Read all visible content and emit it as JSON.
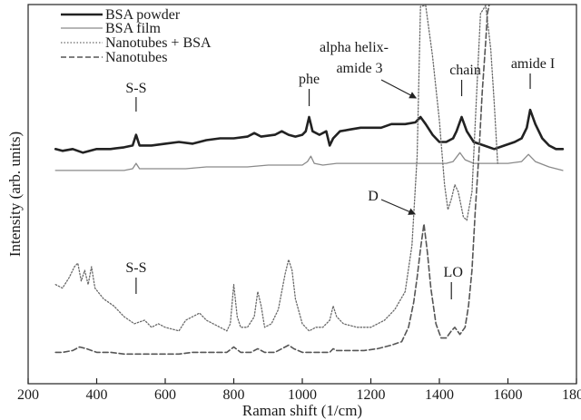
{
  "chart_data": {
    "type": "line",
    "xlabel": "Raman shift (1/cm)",
    "ylabel": "Intensity (arb. units)",
    "xlim": [
      200,
      1800
    ],
    "y_units": "arbitrary (relative)",
    "ylim": [
      0,
      100
    ],
    "x_ticks": [
      200,
      400,
      600,
      800,
      1000,
      1200,
      1400,
      1600,
      1800
    ],
    "grid": false,
    "legend_position": "top-left",
    "series": [
      {
        "name": "BSA powder",
        "style": "solid-thick",
        "color": "#222222",
        "points": [
          [
            280,
            62
          ],
          [
            300,
            61.5
          ],
          [
            330,
            62
          ],
          [
            360,
            61
          ],
          [
            400,
            62
          ],
          [
            440,
            62
          ],
          [
            480,
            62.5
          ],
          [
            505,
            63
          ],
          [
            515,
            66
          ],
          [
            525,
            63
          ],
          [
            560,
            63
          ],
          [
            600,
            63.5
          ],
          [
            640,
            64
          ],
          [
            680,
            63.5
          ],
          [
            720,
            64.5
          ],
          [
            760,
            65
          ],
          [
            800,
            65
          ],
          [
            840,
            65.5
          ],
          [
            860,
            66.5
          ],
          [
            880,
            65.5
          ],
          [
            920,
            66
          ],
          [
            940,
            67
          ],
          [
            960,
            66
          ],
          [
            980,
            65.5
          ],
          [
            1000,
            66
          ],
          [
            1010,
            67
          ],
          [
            1020,
            71
          ],
          [
            1030,
            67
          ],
          [
            1050,
            66
          ],
          [
            1070,
            67
          ],
          [
            1080,
            63
          ],
          [
            1090,
            65
          ],
          [
            1110,
            67
          ],
          [
            1140,
            67.5
          ],
          [
            1170,
            68
          ],
          [
            1200,
            68
          ],
          [
            1230,
            68
          ],
          [
            1260,
            69
          ],
          [
            1300,
            69
          ],
          [
            1330,
            69.5
          ],
          [
            1345,
            71
          ],
          [
            1360,
            69
          ],
          [
            1380,
            66
          ],
          [
            1400,
            64
          ],
          [
            1420,
            64
          ],
          [
            1440,
            65
          ],
          [
            1450,
            67
          ],
          [
            1465,
            71
          ],
          [
            1480,
            67
          ],
          [
            1500,
            64
          ],
          [
            1530,
            63
          ],
          [
            1560,
            62
          ],
          [
            1590,
            63
          ],
          [
            1620,
            64
          ],
          [
            1640,
            65
          ],
          [
            1655,
            68
          ],
          [
            1665,
            73
          ],
          [
            1680,
            69
          ],
          [
            1700,
            65
          ],
          [
            1720,
            63
          ],
          [
            1740,
            62
          ],
          [
            1760,
            62
          ]
        ]
      },
      {
        "name": "BSA film",
        "style": "solid-thin",
        "color": "#8a8a8a",
        "points": [
          [
            280,
            56
          ],
          [
            320,
            56
          ],
          [
            360,
            56
          ],
          [
            400,
            56
          ],
          [
            440,
            56
          ],
          [
            480,
            56
          ],
          [
            505,
            56.5
          ],
          [
            515,
            58
          ],
          [
            525,
            56.5
          ],
          [
            560,
            56.5
          ],
          [
            600,
            56.5
          ],
          [
            660,
            56.5
          ],
          [
            720,
            57
          ],
          [
            780,
            57
          ],
          [
            840,
            57
          ],
          [
            900,
            57.5
          ],
          [
            960,
            57.5
          ],
          [
            1000,
            57.5
          ],
          [
            1015,
            58.5
          ],
          [
            1025,
            60
          ],
          [
            1035,
            58
          ],
          [
            1060,
            57.5
          ],
          [
            1100,
            58
          ],
          [
            1150,
            58
          ],
          [
            1200,
            58
          ],
          [
            1260,
            58
          ],
          [
            1300,
            58
          ],
          [
            1340,
            58
          ],
          [
            1380,
            58
          ],
          [
            1420,
            58
          ],
          [
            1440,
            58.5
          ],
          [
            1460,
            61
          ],
          [
            1475,
            59
          ],
          [
            1500,
            58
          ],
          [
            1530,
            58
          ],
          [
            1560,
            58
          ],
          [
            1600,
            58
          ],
          [
            1640,
            58.5
          ],
          [
            1660,
            60.5
          ],
          [
            1680,
            58.5
          ],
          [
            1720,
            57
          ],
          [
            1760,
            56
          ]
        ]
      },
      {
        "name": "Nanotubes + BSA",
        "style": "dotted",
        "color": "#6a6a6a",
        "points": [
          [
            280,
            24
          ],
          [
            300,
            23
          ],
          [
            320,
            26
          ],
          [
            335,
            29
          ],
          [
            345,
            30
          ],
          [
            355,
            25
          ],
          [
            365,
            28
          ],
          [
            375,
            24
          ],
          [
            385,
            29
          ],
          [
            395,
            23
          ],
          [
            420,
            20
          ],
          [
            450,
            18
          ],
          [
            480,
            15
          ],
          [
            510,
            13
          ],
          [
            540,
            14
          ],
          [
            560,
            12
          ],
          [
            580,
            13
          ],
          [
            600,
            12
          ],
          [
            640,
            11
          ],
          [
            660,
            14
          ],
          [
            680,
            15
          ],
          [
            700,
            16
          ],
          [
            720,
            14
          ],
          [
            760,
            12
          ],
          [
            780,
            11
          ],
          [
            790,
            13
          ],
          [
            800,
            24
          ],
          [
            810,
            15
          ],
          [
            820,
            12
          ],
          [
            840,
            12
          ],
          [
            860,
            15
          ],
          [
            870,
            22
          ],
          [
            880,
            18
          ],
          [
            890,
            12
          ],
          [
            910,
            13
          ],
          [
            930,
            17
          ],
          [
            950,
            27
          ],
          [
            960,
            31
          ],
          [
            970,
            28
          ],
          [
            980,
            20
          ],
          [
            1000,
            13
          ],
          [
            1020,
            11
          ],
          [
            1040,
            12
          ],
          [
            1060,
            12
          ],
          [
            1080,
            14
          ],
          [
            1090,
            18
          ],
          [
            1100,
            15
          ],
          [
            1120,
            13
          ],
          [
            1160,
            12
          ],
          [
            1200,
            12
          ],
          [
            1240,
            14
          ],
          [
            1270,
            17
          ],
          [
            1300,
            22
          ],
          [
            1320,
            35
          ],
          [
            1335,
            60
          ],
          [
            1345,
            102
          ],
          [
            1360,
            103
          ],
          [
            1380,
            88
          ],
          [
            1400,
            70
          ],
          [
            1415,
            52
          ],
          [
            1425,
            45
          ],
          [
            1435,
            48
          ],
          [
            1445,
            52
          ],
          [
            1455,
            50
          ],
          [
            1470,
            43
          ],
          [
            1480,
            42
          ],
          [
            1495,
            50
          ],
          [
            1510,
            80
          ],
          [
            1520,
            100
          ],
          [
            1535,
            103
          ],
          [
            1550,
            90
          ],
          [
            1560,
            75
          ],
          [
            1570,
            58
          ]
        ]
      },
      {
        "name": "Nanotubes",
        "style": "dashed",
        "color": "#555555",
        "points": [
          [
            280,
            5
          ],
          [
            300,
            5
          ],
          [
            330,
            5.5
          ],
          [
            350,
            6.5
          ],
          [
            370,
            6
          ],
          [
            400,
            5
          ],
          [
            440,
            5
          ],
          [
            480,
            4.5
          ],
          [
            520,
            4.5
          ],
          [
            560,
            4.5
          ],
          [
            600,
            4.5
          ],
          [
            640,
            4.5
          ],
          [
            680,
            5
          ],
          [
            720,
            5
          ],
          [
            780,
            5
          ],
          [
            800,
            6.5
          ],
          [
            820,
            5
          ],
          [
            850,
            5
          ],
          [
            870,
            6
          ],
          [
            890,
            5
          ],
          [
            920,
            5
          ],
          [
            950,
            6.5
          ],
          [
            960,
            7
          ],
          [
            975,
            6
          ],
          [
            1000,
            5
          ],
          [
            1040,
            5
          ],
          [
            1080,
            5
          ],
          [
            1090,
            6
          ],
          [
            1100,
            5.5
          ],
          [
            1140,
            5.5
          ],
          [
            1180,
            5.5
          ],
          [
            1220,
            6
          ],
          [
            1260,
            7
          ],
          [
            1290,
            8
          ],
          [
            1310,
            12
          ],
          [
            1325,
            19
          ],
          [
            1335,
            26
          ],
          [
            1345,
            34
          ],
          [
            1355,
            41
          ],
          [
            1365,
            33
          ],
          [
            1375,
            23
          ],
          [
            1390,
            13
          ],
          [
            1405,
            9
          ],
          [
            1420,
            9
          ],
          [
            1435,
            11
          ],
          [
            1445,
            12
          ],
          [
            1460,
            10
          ],
          [
            1475,
            12
          ],
          [
            1485,
            18
          ],
          [
            1495,
            28
          ],
          [
            1505,
            45
          ],
          [
            1515,
            60
          ],
          [
            1525,
            78
          ],
          [
            1535,
            92
          ],
          [
            1540,
            100
          ],
          [
            1545,
            103
          ]
        ]
      }
    ],
    "annotations": [
      {
        "text": "S-S",
        "x": 515,
        "series": "BSA powder"
      },
      {
        "text": "phe",
        "x": 1020,
        "series": "BSA powder"
      },
      {
        "text": "alpha helix-",
        "x": 1345,
        "series": "BSA powder"
      },
      {
        "text": "amide 3",
        "x": 1345,
        "series": "BSA powder"
      },
      {
        "text": "chain",
        "x": 1465,
        "series": "BSA powder"
      },
      {
        "text": "amide I",
        "x": 1665,
        "series": "BSA powder"
      },
      {
        "text": "S-S",
        "x": 515,
        "series": "Nanotubes + BSA"
      },
      {
        "text": "D",
        "x": 1350,
        "series": "Nanotubes"
      },
      {
        "text": "LO",
        "x": 1435,
        "series": "Nanotubes"
      }
    ]
  }
}
